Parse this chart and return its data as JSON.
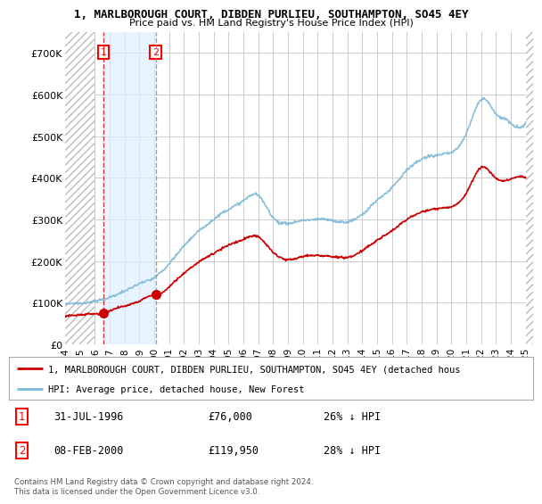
{
  "title": "1, MARLBOROUGH COURT, DIBDEN PURLIEU, SOUTHAMPTON, SO45 4EY",
  "subtitle": "Price paid vs. HM Land Registry's House Price Index (HPI)",
  "xlim_start": 1994.0,
  "xlim_end": 2025.5,
  "ylim": [
    0,
    750000
  ],
  "yticks": [
    0,
    100000,
    200000,
    300000,
    400000,
    500000,
    600000,
    700000
  ],
  "ytick_labels": [
    "£0",
    "£100K",
    "£200K",
    "£300K",
    "£400K",
    "£500K",
    "£600K",
    "£700K"
  ],
  "sale1_x": 1996.58,
  "sale1_y": 76000,
  "sale1_label": "1",
  "sale1_date": "31-JUL-1996",
  "sale1_price": "£76,000",
  "sale1_hpi": "26% ↓ HPI",
  "sale2_x": 2000.11,
  "sale2_y": 119950,
  "sale2_label": "2",
  "sale2_date": "08-FEB-2000",
  "sale2_price": "£119,950",
  "sale2_hpi": "28% ↓ HPI",
  "hpi_color": "#7ab8d9",
  "price_color": "#cc0000",
  "legend_label_price": "1, MARLBOROUGH COURT, DIBDEN PURLIEU, SOUTHAMPTON, SO45 4EY (detached hous",
  "legend_label_hpi": "HPI: Average price, detached house, New Forest",
  "footnote": "Contains HM Land Registry data © Crown copyright and database right 2024.\nThis data is licensed under the Open Government Licence v3.0.",
  "xticks": [
    1994,
    1995,
    1996,
    1997,
    1998,
    1999,
    2000,
    2001,
    2002,
    2003,
    2004,
    2005,
    2006,
    2007,
    2008,
    2009,
    2010,
    2011,
    2012,
    2013,
    2014,
    2015,
    2016,
    2017,
    2018,
    2019,
    2020,
    2021,
    2022,
    2023,
    2024,
    2025
  ],
  "hatch_end": 1996.0,
  "shade_between_sales": true,
  "shade_color": "#ddeeff"
}
